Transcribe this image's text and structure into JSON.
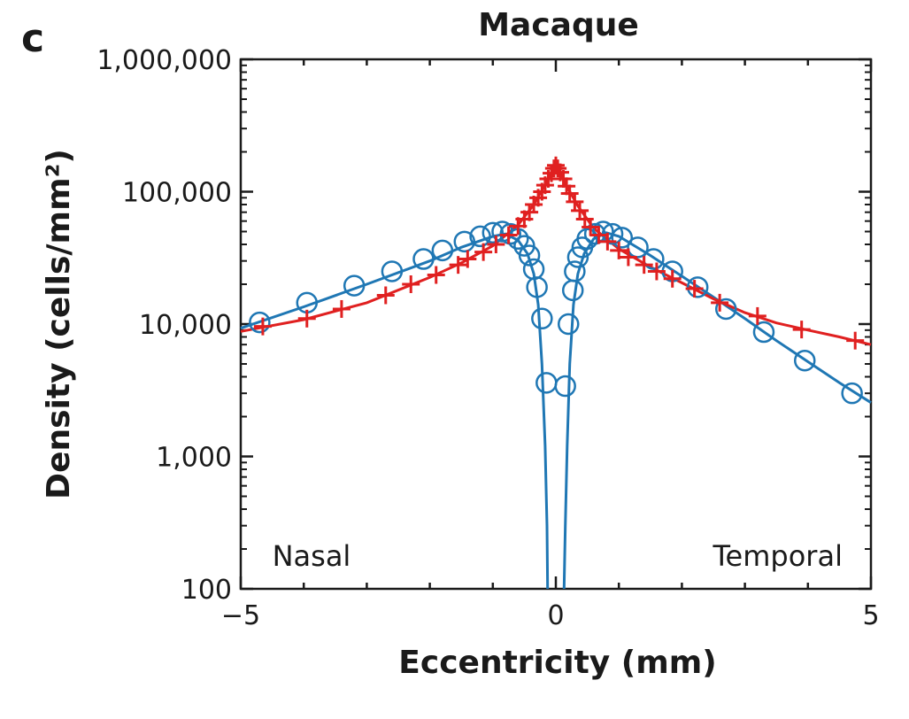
{
  "panel_label": "c",
  "chart_data": {
    "type": "scatter",
    "title": "Macaque",
    "xlabel": "Eccentricity (mm)",
    "ylabel": "Density (cells/mm²)",
    "xlim": [
      -5,
      5
    ],
    "ylim": [
      100,
      1000000
    ],
    "yscale": "log",
    "x_ticks": [
      -5,
      0,
      5
    ],
    "x_tick_labels": [
      "−5",
      "0",
      "5"
    ],
    "y_ticks": [
      100,
      1000,
      10000,
      100000,
      1000000
    ],
    "y_tick_labels": [
      "100",
      "1,000",
      "10,000",
      "100,000",
      "1,000,000"
    ],
    "grid": false,
    "annotations": [
      {
        "text": "Nasal",
        "x": -4.5,
        "y": 180
      },
      {
        "text": "Temporal",
        "x": 4.55,
        "y": 180
      }
    ],
    "series": [
      {
        "color": "#1f77b4",
        "marker": "circle",
        "points": [
          [
            -4.7,
            10300
          ],
          [
            -3.95,
            14500
          ],
          [
            -3.2,
            19500
          ],
          [
            -2.6,
            25000
          ],
          [
            -2.1,
            31000
          ],
          [
            -1.8,
            36000
          ],
          [
            -1.45,
            42000
          ],
          [
            -1.2,
            46000
          ],
          [
            -1.0,
            49000
          ],
          [
            -0.85,
            50000
          ],
          [
            -0.72,
            48000
          ],
          [
            -0.6,
            44000
          ],
          [
            -0.5,
            39000
          ],
          [
            -0.42,
            33000
          ],
          [
            -0.35,
            26000
          ],
          [
            -0.3,
            19000
          ],
          [
            -0.22,
            11000
          ],
          [
            -0.15,
            3600
          ],
          [
            0.15,
            3400
          ],
          [
            0.2,
            10000
          ],
          [
            0.27,
            18000
          ],
          [
            0.3,
            25000
          ],
          [
            0.35,
            32000
          ],
          [
            0.42,
            38000
          ],
          [
            0.5,
            44000
          ],
          [
            0.62,
            48000
          ],
          [
            0.75,
            50000
          ],
          [
            0.9,
            48000
          ],
          [
            1.05,
            45000
          ],
          [
            1.3,
            38000
          ],
          [
            1.55,
            31000
          ],
          [
            1.85,
            25000
          ],
          [
            2.25,
            19000
          ],
          [
            2.7,
            13000
          ],
          [
            3.3,
            8700
          ],
          [
            3.95,
            5300
          ],
          [
            4.7,
            3000
          ]
        ],
        "curve_left": [
          [
            -5,
            9300
          ],
          [
            -4.0,
            13500
          ],
          [
            -3.0,
            20000
          ],
          [
            -2.0,
            30000
          ],
          [
            -1.5,
            38000
          ],
          [
            -1.0,
            46000
          ],
          [
            -0.8,
            48000
          ],
          [
            -0.6,
            43000
          ],
          [
            -0.45,
            34000
          ],
          [
            -0.35,
            24000
          ],
          [
            -0.28,
            14000
          ],
          [
            -0.22,
            5000
          ],
          [
            -0.17,
            1200
          ],
          [
            -0.14,
            300
          ],
          [
            -0.13,
            100
          ]
        ],
        "curve_right": [
          [
            0.13,
            100
          ],
          [
            0.15,
            300
          ],
          [
            0.18,
            1200
          ],
          [
            0.22,
            5000
          ],
          [
            0.28,
            14000
          ],
          [
            0.35,
            24000
          ],
          [
            0.45,
            34000
          ],
          [
            0.6,
            44000
          ],
          [
            0.8,
            49000
          ],
          [
            1.0,
            46000
          ],
          [
            1.5,
            33000
          ],
          [
            2.0,
            23000
          ],
          [
            2.5,
            16000
          ],
          [
            3.0,
            11000
          ],
          [
            3.5,
            7500
          ],
          [
            4.0,
            5200
          ],
          [
            4.5,
            3600
          ],
          [
            5,
            2550
          ]
        ]
      },
      {
        "color": "#e02020",
        "marker": "plus",
        "points": [
          [
            -4.65,
            9600
          ],
          [
            -3.95,
            11000
          ],
          [
            -3.4,
            13000
          ],
          [
            -2.7,
            16500
          ],
          [
            -2.3,
            20000
          ],
          [
            -1.9,
            23500
          ],
          [
            -1.55,
            28000
          ],
          [
            -1.4,
            31000
          ],
          [
            -1.15,
            35000
          ],
          [
            -0.95,
            40000
          ],
          [
            -0.75,
            47000
          ],
          [
            -0.6,
            55000
          ],
          [
            -0.5,
            62000
          ],
          [
            -0.42,
            70000
          ],
          [
            -0.35,
            80000
          ],
          [
            -0.28,
            90000
          ],
          [
            -0.22,
            100000
          ],
          [
            -0.17,
            112000
          ],
          [
            -0.12,
            125000
          ],
          [
            -0.07,
            138000
          ],
          [
            -0.03,
            150000
          ],
          [
            0.0,
            158000
          ],
          [
            0.03,
            150000
          ],
          [
            0.07,
            140000
          ],
          [
            0.12,
            125000
          ],
          [
            0.17,
            110000
          ],
          [
            0.22,
            97000
          ],
          [
            0.3,
            84000
          ],
          [
            0.38,
            72000
          ],
          [
            0.46,
            62000
          ],
          [
            0.55,
            54000
          ],
          [
            0.68,
            47000
          ],
          [
            0.82,
            42000
          ],
          [
            1.0,
            36000
          ],
          [
            1.15,
            32000
          ],
          [
            1.4,
            28000
          ],
          [
            1.6,
            25000
          ],
          [
            1.85,
            22000
          ],
          [
            2.2,
            18500
          ],
          [
            2.6,
            14500
          ],
          [
            3.2,
            11500
          ],
          [
            3.9,
            9100
          ],
          [
            4.75,
            7500
          ]
        ],
        "curve": [
          [
            -5,
            8800
          ],
          [
            -4.0,
            10800
          ],
          [
            -3.0,
            14500
          ],
          [
            -2.0,
            22500
          ],
          [
            -1.5,
            29000
          ],
          [
            -1.0,
            39000
          ],
          [
            -0.6,
            56000
          ],
          [
            -0.35,
            80000
          ],
          [
            -0.15,
            118000
          ],
          [
            -0.05,
            145000
          ],
          [
            0.0,
            155000
          ],
          [
            0.05,
            145000
          ],
          [
            0.15,
            115000
          ],
          [
            0.35,
            78000
          ],
          [
            0.6,
            53000
          ],
          [
            1.0,
            37000
          ],
          [
            1.5,
            27000
          ],
          [
            2.0,
            20500
          ],
          [
            2.5,
            15500
          ],
          [
            3.0,
            12200
          ],
          [
            3.5,
            10200
          ],
          [
            4.0,
            9000
          ],
          [
            4.5,
            8000
          ],
          [
            5,
            7000
          ]
        ]
      }
    ]
  }
}
